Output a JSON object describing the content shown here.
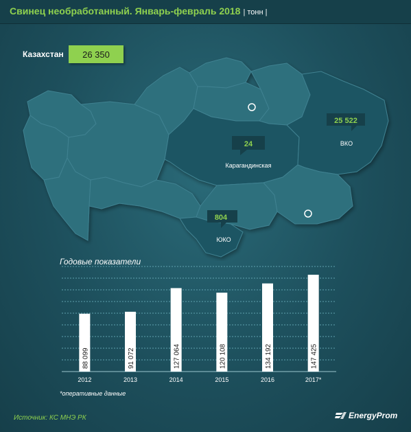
{
  "header": {
    "title": "Свинец необработанный. Январь-февраль 2018",
    "unit": "| тонн |"
  },
  "total": {
    "label": "Казахстан",
    "value": "26 350"
  },
  "map_callouts": [
    {
      "value": "24",
      "region": "Карагандинская"
    },
    {
      "value": "25 522",
      "region": "ВКО"
    },
    {
      "value": "804",
      "region": "ЮКО"
    }
  ],
  "chart_data": {
    "type": "bar",
    "title": "Годовые показатели",
    "categories": [
      "2012",
      "2013",
      "2014",
      "2015",
      "2016",
      "2017*"
    ],
    "values": [
      88099,
      91072,
      127064,
      120108,
      134192,
      147425
    ],
    "value_labels": [
      "88 099",
      "91 072",
      "127 064",
      "120 108",
      "134 192",
      "147 425"
    ],
    "ylim": [
      0,
      160000
    ],
    "grid": true,
    "xlabel": "",
    "ylabel": ""
  },
  "footnote": "*оперативные данные",
  "source": "Источник: КС МНЭ РК",
  "brand": "EnergyProm",
  "colors": {
    "accent": "#8fd14f",
    "bar": "#ffffff",
    "map_region": "#2f6f7d",
    "map_highlight": "#1f5563"
  }
}
